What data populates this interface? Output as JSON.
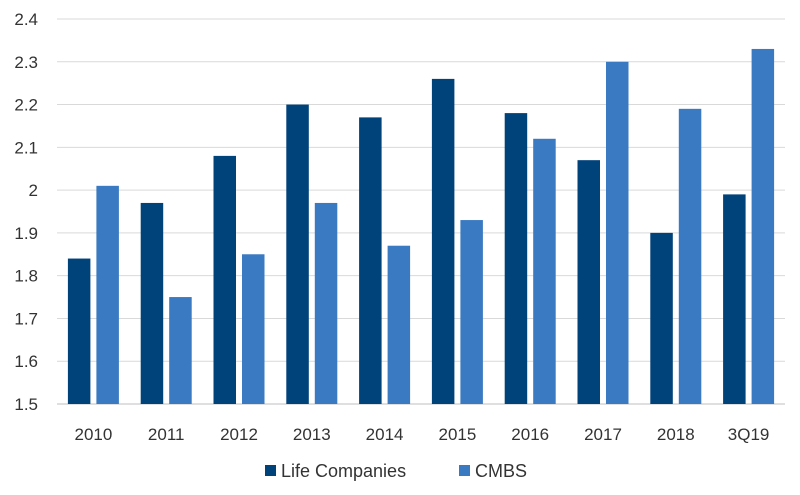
{
  "chart_data": {
    "type": "bar",
    "categories": [
      "2010",
      "2011",
      "2012",
      "2013",
      "2014",
      "2015",
      "2016",
      "2017",
      "2018",
      "3Q19"
    ],
    "series": [
      {
        "name": "Life Companies",
        "color": "#00427a",
        "values": [
          1.84,
          1.97,
          2.08,
          2.2,
          2.17,
          2.26,
          2.18,
          2.07,
          1.9,
          1.99
        ]
      },
      {
        "name": "CMBS",
        "color": "#3a7ac2",
        "values": [
          2.01,
          1.75,
          1.85,
          1.97,
          1.87,
          1.93,
          2.12,
          2.3,
          2.19,
          2.33
        ]
      }
    ],
    "ylim": [
      1.5,
      2.4
    ],
    "yticks": [
      "1.5",
      "1.6",
      "1.7",
      "1.8",
      "1.9",
      "2",
      "2.1",
      "2.2",
      "2.3",
      "2.4"
    ],
    "grid": true,
    "legend_position": "bottom-center"
  }
}
